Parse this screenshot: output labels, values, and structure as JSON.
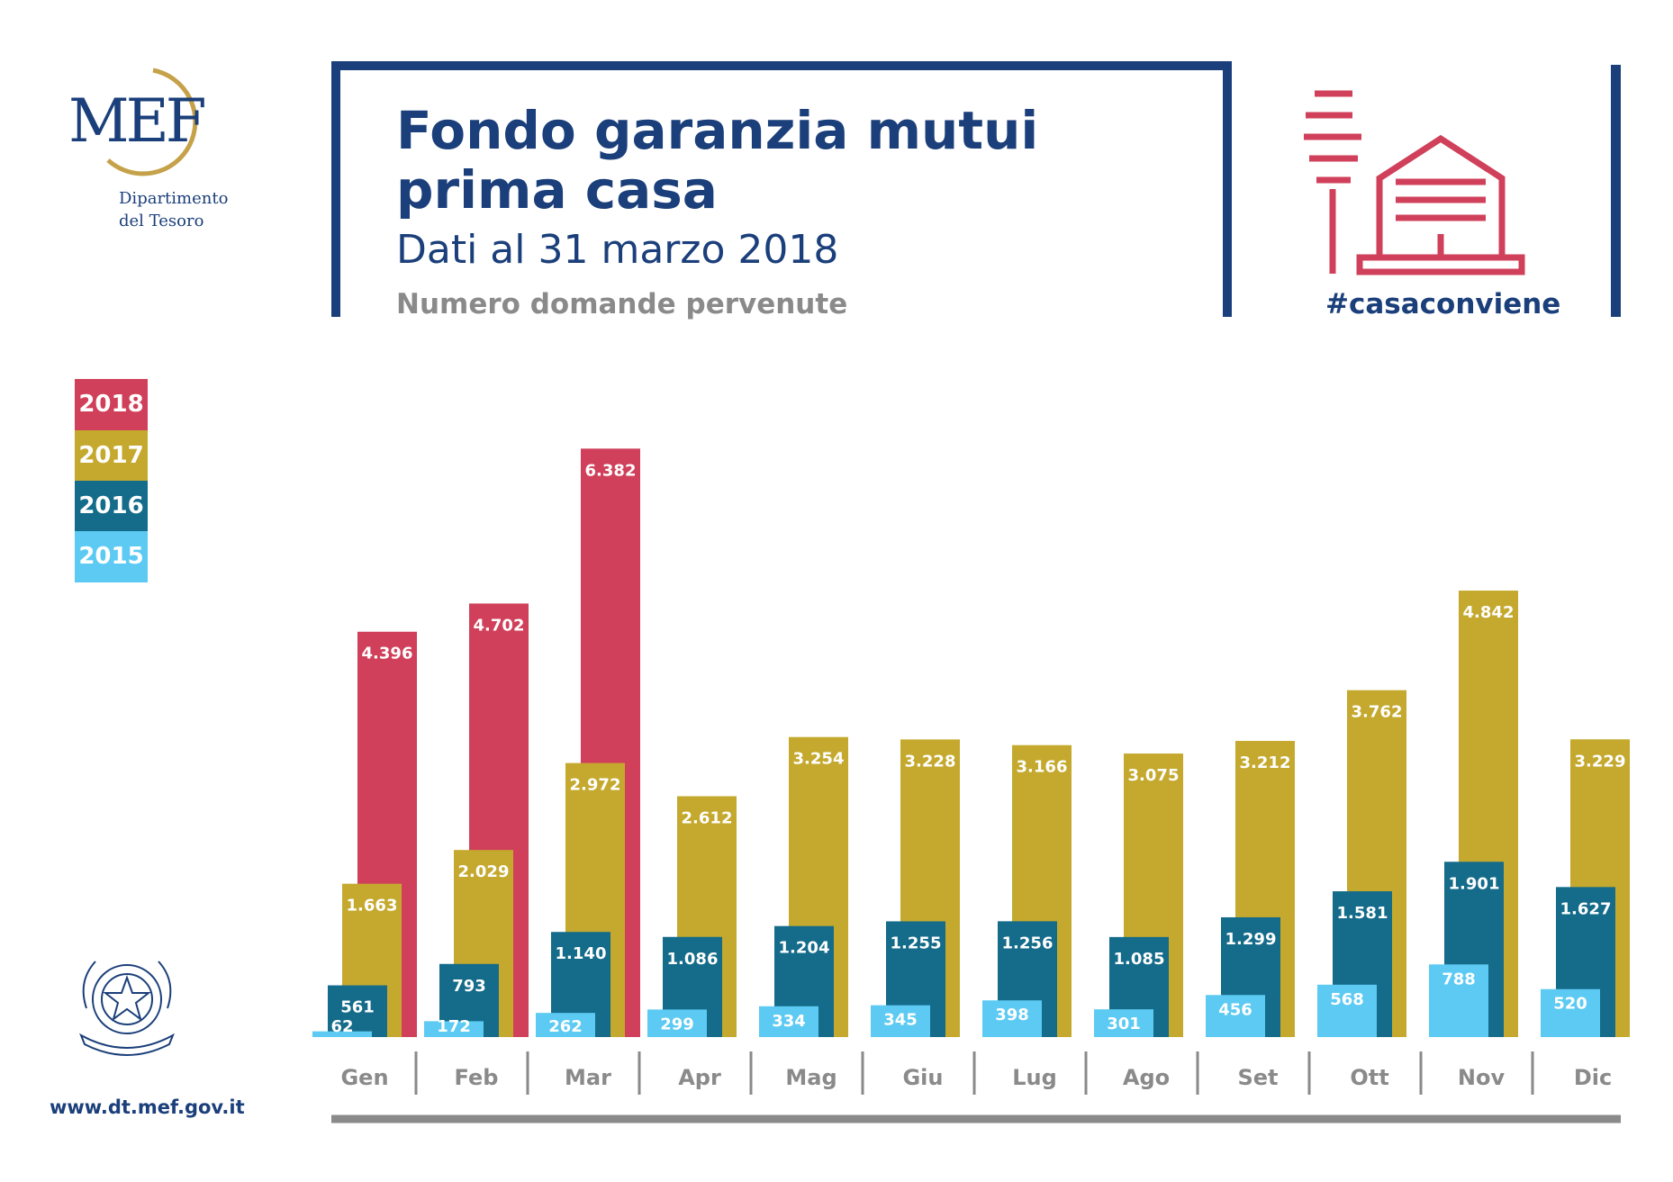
{
  "header": {
    "logo_text": "MEF",
    "dept_line1": "Dipartimento",
    "dept_line2": "del Tesoro",
    "title_line1": "Fondo garanzia mutui",
    "title_line2": "prima casa",
    "subtitle": "Dati al 31 marzo 2018",
    "caption": "Numero domande pervenute",
    "hashtag": "#casaconviene"
  },
  "footer": {
    "url": "www.dt.mef.gov.it"
  },
  "colors": {
    "brand_blue": "#1b3f7a",
    "y2018": "#d0405a",
    "y2017": "#c5a92e",
    "y2016": "#146b8a",
    "y2015": "#5ccaf2",
    "axis": "#8a8a8a"
  },
  "chart_data": {
    "type": "bar",
    "title": "Numero domande pervenute",
    "categories": [
      "Gen",
      "Feb",
      "Mar",
      "Apr",
      "Mag",
      "Giu",
      "Lug",
      "Ago",
      "Set",
      "Ott",
      "Nov",
      "Dic"
    ],
    "legend_position": "left",
    "grid": false,
    "ylim": [
      0,
      6600
    ],
    "series": [
      {
        "name": "2018",
        "color": "#d0405a",
        "values": [
          4396,
          4702,
          6382,
          null,
          null,
          null,
          null,
          null,
          null,
          null,
          null,
          null
        ],
        "labels": [
          "4.396",
          "4.702",
          "6.382",
          "",
          "",
          "",
          "",
          "",
          "",
          "",
          "",
          ""
        ]
      },
      {
        "name": "2017",
        "color": "#c5a92e",
        "values": [
          1663,
          2029,
          2972,
          2612,
          3254,
          3228,
          3166,
          3075,
          3212,
          3762,
          4842,
          3229
        ],
        "labels": [
          "1.663",
          "2.029",
          "2.972",
          "2.612",
          "3.254",
          "3.228",
          "3.166",
          "3.075",
          "3.212",
          "3.762",
          "4.842",
          "3.229"
        ]
      },
      {
        "name": "2016",
        "color": "#146b8a",
        "values": [
          561,
          793,
          1140,
          1086,
          1204,
          1255,
          1256,
          1085,
          1299,
          1581,
          1901,
          1627
        ],
        "labels": [
          "561",
          "793",
          "1.140",
          "1.086",
          "1.204",
          "1.255",
          "1.256",
          "1.085",
          "1.299",
          "1.581",
          "1.901",
          "1.627"
        ]
      },
      {
        "name": "2015",
        "color": "#5ccaf2",
        "values": [
          62,
          172,
          262,
          299,
          334,
          345,
          398,
          301,
          456,
          568,
          788,
          520
        ],
        "labels": [
          "62",
          "172",
          "262",
          "299",
          "334",
          "345",
          "398",
          "301",
          "456",
          "568",
          "788",
          "520"
        ]
      }
    ]
  }
}
